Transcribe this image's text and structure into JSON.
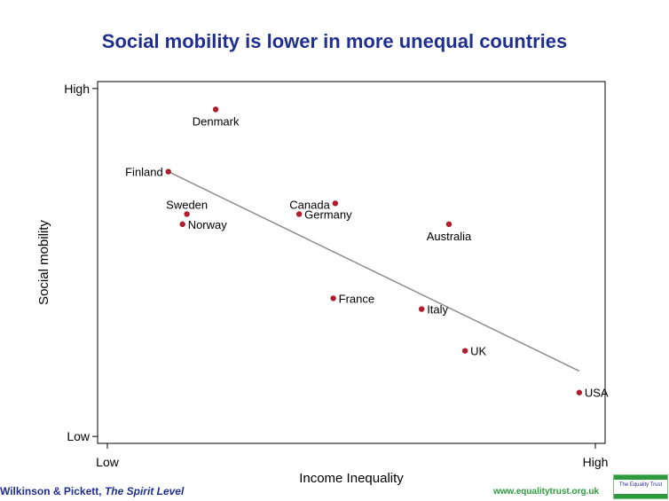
{
  "title": "Social mobility is lower in more unequal countries",
  "footer": {
    "authors": "Wilkinson & Pickett,",
    "book": "The Spirit Level",
    "url": "www.equalitytrust.org.uk",
    "logo_text": "The Equality Trust"
  },
  "colors": {
    "title": "#1f2f8f",
    "point": "#b01e2e",
    "trend": "#8c8c8c",
    "footer_url": "#2e9a3e"
  },
  "chart_data": {
    "type": "scatter",
    "xlabel": "Income Inequality",
    "ylabel": "Social mobility",
    "x_ticks": [
      {
        "value": 0,
        "label": "Low"
      },
      {
        "value": 1,
        "label": "High"
      }
    ],
    "y_ticks": [
      {
        "value": 0,
        "label": "Low"
      },
      {
        "value": 1,
        "label": "High"
      }
    ],
    "xlim": [
      -0.02,
      1.02
    ],
    "ylim": [
      -0.02,
      1.02
    ],
    "grid": false,
    "legend": "none",
    "points": [
      {
        "label": "Denmark",
        "x": 0.222,
        "y": 0.94,
        "label_pos": "below"
      },
      {
        "label": "Finland",
        "x": 0.125,
        "y": 0.761,
        "label_pos": "left"
      },
      {
        "label": "Sweden",
        "x": 0.163,
        "y": 0.639,
        "label_pos": "above"
      },
      {
        "label": "Norway",
        "x": 0.154,
        "y": 0.61,
        "label_pos": "right"
      },
      {
        "label": "Canada",
        "x": 0.467,
        "y": 0.67,
        "label_pos": "above-left"
      },
      {
        "label": "Germany",
        "x": 0.393,
        "y": 0.639,
        "label_pos": "right"
      },
      {
        "label": "Australia",
        "x": 0.7,
        "y": 0.61,
        "label_pos": "below"
      },
      {
        "label": "France",
        "x": 0.463,
        "y": 0.397,
        "label_pos": "right"
      },
      {
        "label": "Italy",
        "x": 0.644,
        "y": 0.366,
        "label_pos": "right"
      },
      {
        "label": "UK",
        "x": 0.733,
        "y": 0.246,
        "label_pos": "right"
      },
      {
        "label": "USA",
        "x": 0.967,
        "y": 0.126,
        "label_pos": "right"
      }
    ],
    "trend_line": {
      "x": [
        0.125,
        0.967
      ],
      "y": [
        0.761,
        0.188
      ]
    }
  }
}
